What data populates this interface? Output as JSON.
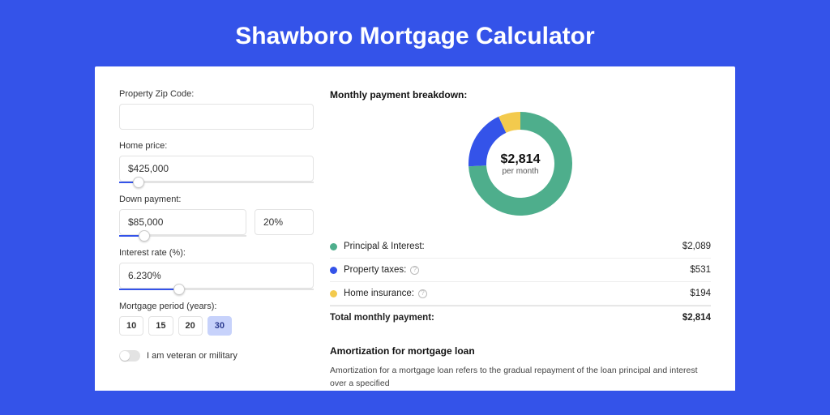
{
  "page": {
    "title": "Shawboro Mortgage Calculator",
    "background_color": "#3453e9"
  },
  "form": {
    "zip": {
      "label": "Property Zip Code:",
      "value": ""
    },
    "home_price": {
      "label": "Home price:",
      "value": "$425,000",
      "slider_pct": 10
    },
    "down_payment": {
      "label": "Down payment:",
      "value": "$85,000",
      "pct_value": "20%",
      "slider_pct": 20
    },
    "interest_rate": {
      "label": "Interest rate (%):",
      "value": "6.230%",
      "slider_pct": 31
    },
    "mortgage_period": {
      "label": "Mortgage period (years):",
      "options": [
        "10",
        "15",
        "20",
        "30"
      ],
      "active_index": 3
    },
    "veteran": {
      "label": "I am veteran or military",
      "on": false
    }
  },
  "breakdown": {
    "heading": "Monthly payment breakdown:",
    "donut": {
      "center_amount": "$2,814",
      "center_sub": "per month",
      "segments": [
        {
          "label": "Principal & Interest:",
          "value": "$2,089",
          "color": "#4eae8c",
          "fraction": 0.742
        },
        {
          "label": "Property taxes:",
          "value": "$531",
          "color": "#3453e9",
          "fraction": 0.189
        },
        {
          "label": "Home insurance:",
          "value": "$194",
          "color": "#f3ca4d",
          "fraction": 0.069
        }
      ],
      "ring_width": 22,
      "size": 128,
      "background_color": "#ffffff"
    },
    "total": {
      "label": "Total monthly payment:",
      "value": "$2,814"
    }
  },
  "amortization": {
    "heading": "Amortization for mortgage loan",
    "text": "Amortization for a mortgage loan refers to the gradual repayment of the loan principal and interest over a specified"
  }
}
